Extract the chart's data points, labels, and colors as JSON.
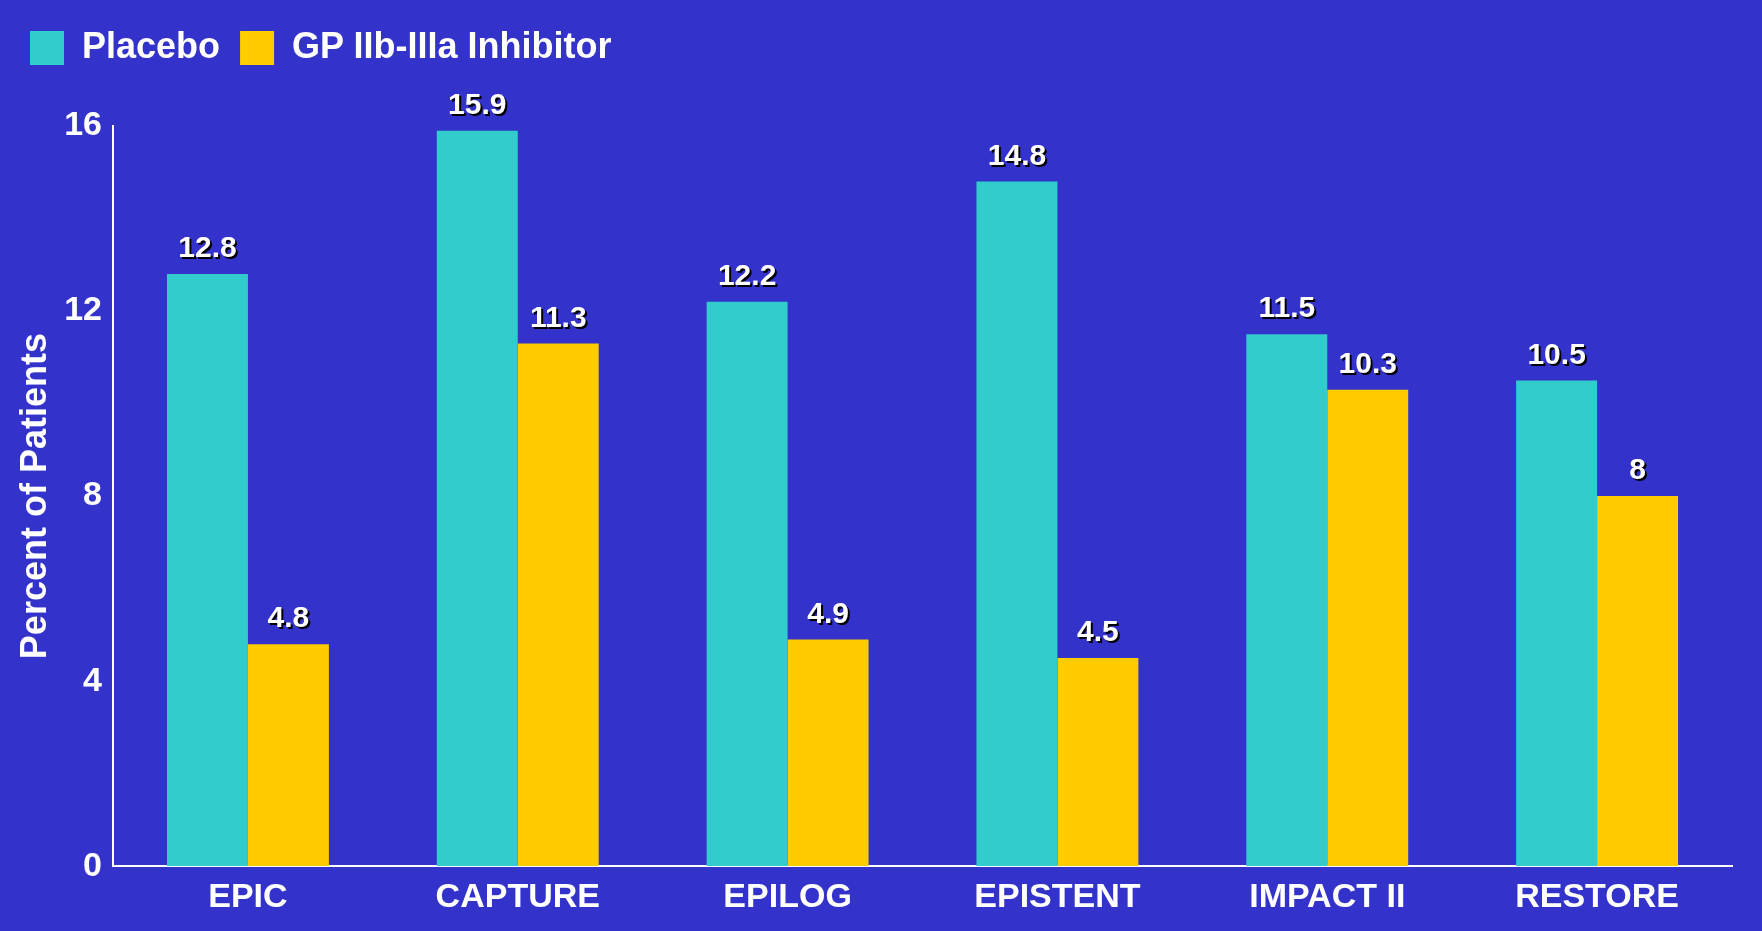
{
  "chart_data": {
    "type": "bar",
    "ylabel": "Percent of Patients",
    "categories": [
      "EPIC",
      "CAPTURE",
      "EPILOG",
      "EPISTENT",
      "IMPACT II",
      "RESTORE"
    ],
    "series": [
      {
        "name": "Placebo",
        "color": "#33cccc",
        "values": [
          12.8,
          15.9,
          12.2,
          14.8,
          11.5,
          10.5
        ]
      },
      {
        "name": "GP IIb-IIIa Inhibitor",
        "color": "#ffcc00",
        "values": [
          4.8,
          11.3,
          4.9,
          4.5,
          10.3,
          8
        ]
      }
    ],
    "ylim": [
      0,
      16
    ],
    "yticks": [
      0,
      4,
      8,
      12,
      16
    ],
    "grid": false,
    "legend": "top left",
    "data_labels": true
  }
}
